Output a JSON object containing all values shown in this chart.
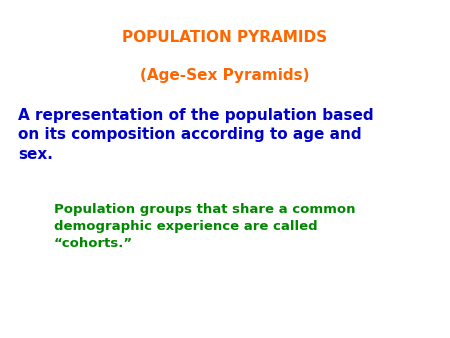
{
  "title1": "POPULATION PYRAMIDS",
  "title1_color": "#FF6600",
  "title2": "(Age-Sex Pyramids)",
  "title2_color": "#FF6600",
  "body_text": "A representation of the population based\non its composition according to age and\nsex.",
  "body_color": "#0000CC",
  "indent_text": "Population groups that share a common\ndemographic experience are called\n“cohorts.”",
  "indent_color": "#008800",
  "background_color": "#FFFFFF",
  "title1_fontsize": 11,
  "title2_fontsize": 11,
  "body_fontsize": 11,
  "indent_fontsize": 9.5
}
